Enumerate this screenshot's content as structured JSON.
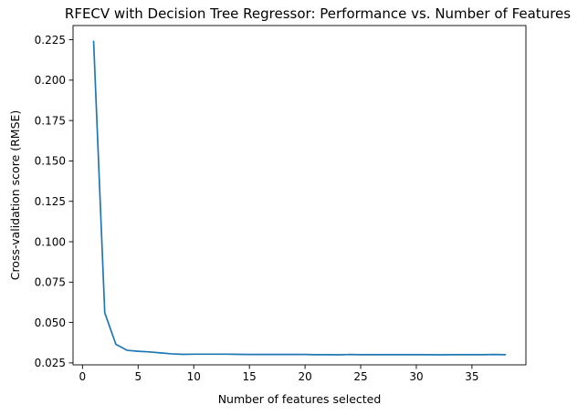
{
  "chart_data": {
    "type": "line",
    "title": "RFECV with Decision Tree Regressor: Performance vs. Number of Features",
    "xlabel": "Number of features selected",
    "ylabel": "Cross-validation score (RMSE)",
    "xlim": [
      -0.85,
      39.85
    ],
    "ylim": [
      0.0238,
      0.2338
    ],
    "xticks": [
      0,
      5,
      10,
      15,
      20,
      25,
      30,
      35
    ],
    "xtick_labels": [
      "0",
      "5",
      "10",
      "15",
      "20",
      "25",
      "30",
      "35"
    ],
    "yticks": [
      0.025,
      0.05,
      0.075,
      0.1,
      0.125,
      0.15,
      0.175,
      0.2,
      0.225
    ],
    "ytick_labels": [
      "0.025",
      "0.050",
      "0.075",
      "0.100",
      "0.125",
      "0.150",
      "0.175",
      "0.200",
      "0.225"
    ],
    "grid": false,
    "series": [
      {
        "name": "RMSE",
        "color": "#1f77b4",
        "x": [
          1,
          2,
          3,
          4,
          5,
          6,
          7,
          8,
          9,
          10,
          11,
          12,
          13,
          14,
          15,
          16,
          17,
          18,
          19,
          20,
          21,
          22,
          23,
          24,
          25,
          26,
          27,
          28,
          29,
          30,
          31,
          32,
          33,
          34,
          35,
          36,
          37,
          38
        ],
        "y": [
          0.224,
          0.056,
          0.0365,
          0.0328,
          0.0322,
          0.0318,
          0.0312,
          0.0306,
          0.0303,
          0.0304,
          0.0304,
          0.0304,
          0.0304,
          0.0303,
          0.0302,
          0.0302,
          0.0302,
          0.0302,
          0.0302,
          0.0302,
          0.0301,
          0.0301,
          0.03,
          0.0302,
          0.0301,
          0.0301,
          0.0301,
          0.0301,
          0.0301,
          0.0301,
          0.0301,
          0.03,
          0.0301,
          0.0301,
          0.0301,
          0.0301,
          0.0302,
          0.0301
        ]
      }
    ]
  }
}
